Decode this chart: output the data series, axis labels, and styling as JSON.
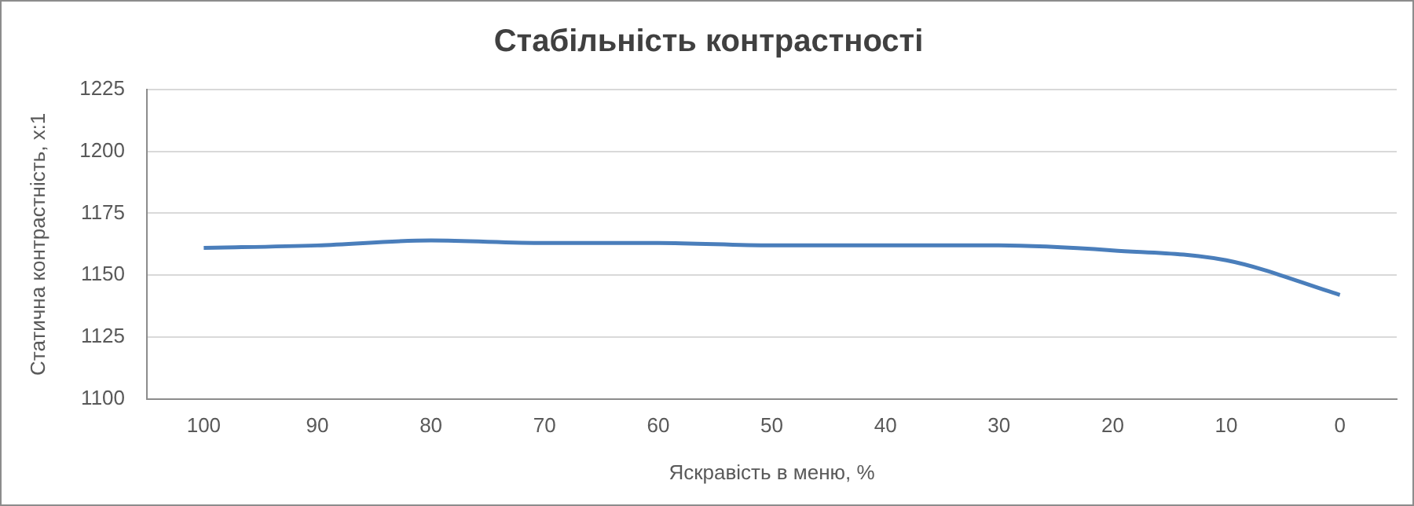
{
  "chart_data": {
    "type": "line",
    "title": "Стабільність контрастності",
    "xlabel": "Яскравість в меню, %",
    "ylabel": "Статична контрастність, x:1",
    "categories": [
      "100",
      "90",
      "80",
      "70",
      "60",
      "50",
      "40",
      "30",
      "20",
      "10",
      "0"
    ],
    "series": [
      {
        "color": "#4a7ebb",
        "values": [
          1161,
          1162,
          1164,
          1163,
          1163,
          1162,
          1162,
          1162,
          1160,
          1156,
          1142
        ]
      }
    ],
    "ylim": [
      1100,
      1225
    ],
    "yticks": [
      1100,
      1125,
      1150,
      1175,
      1200,
      1225
    ],
    "grid": "y",
    "legend": false,
    "marker": "none",
    "line_style": "solid"
  }
}
